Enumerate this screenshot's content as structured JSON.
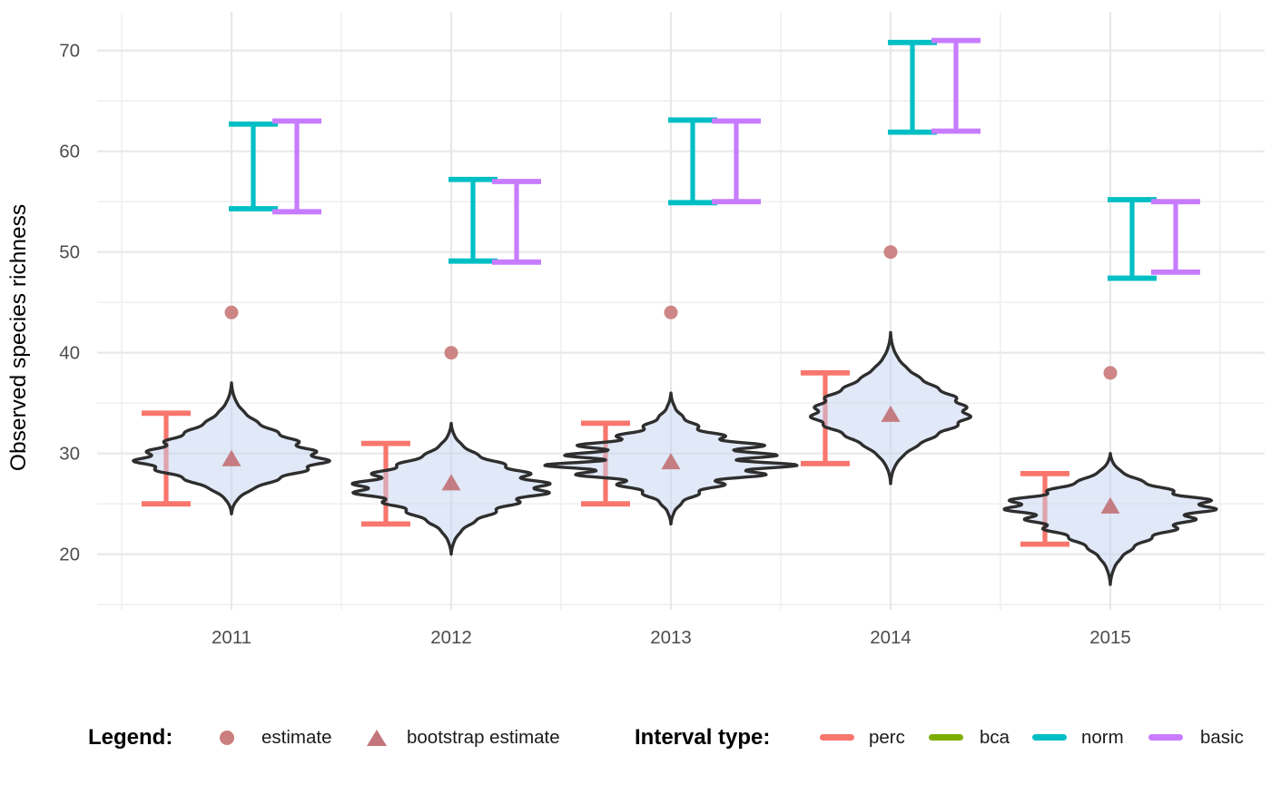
{
  "chart": {
    "y_axis_title": "Observed species richness",
    "legend": {
      "legend_title": "Legend:",
      "estimate_label": "estimate",
      "bootstrap_label": "bootstrap estimate",
      "interval_title": "Interval type:",
      "interval_labels": {
        "perc": "perc",
        "bca": "bca",
        "norm": "norm",
        "basic": "basic"
      }
    }
  },
  "chart_data": {
    "type": "violin",
    "title": "",
    "xlabel": "",
    "ylabel": "Observed species richness",
    "x_categories": [
      "2011",
      "2012",
      "2013",
      "2014",
      "2015"
    ],
    "y_ticks": [
      20,
      30,
      40,
      50,
      60,
      70
    ],
    "ylim": [
      14.5,
      73.9
    ],
    "grid": "major+minor",
    "legend_position": "bottom",
    "estimates": [
      44,
      40,
      44,
      50,
      38
    ],
    "bootstrap_estimates": [
      29.5,
      27.1,
      29.2,
      33.9,
      24.8
    ],
    "intervals": {
      "perc": {
        "label": "perc",
        "color": "#F8766D",
        "lo": [
          25,
          23,
          25,
          29,
          21
        ],
        "hi": [
          34,
          31,
          33,
          38,
          28
        ]
      },
      "bca": {
        "label": "bca",
        "color": "#7CAE00",
        "lo": [
          null,
          null,
          null,
          null,
          null
        ],
        "hi": [
          null,
          null,
          null,
          null,
          null
        ]
      },
      "norm": {
        "label": "norm",
        "color": "#00BFC4",
        "lo": [
          54.3,
          49.1,
          54.9,
          61.9,
          47.4
        ],
        "hi": [
          62.7,
          57.2,
          63.1,
          70.8,
          55.2
        ]
      },
      "basic": {
        "label": "basic",
        "color": "#C77CFF",
        "lo": [
          54,
          49,
          55,
          62,
          48
        ],
        "hi": [
          63,
          57,
          63,
          71,
          55
        ]
      }
    },
    "violins": [
      {
        "category": "2011",
        "min": 24,
        "max": 37,
        "peak": 29.3,
        "hw": 97,
        "wiggle": 0.08
      },
      {
        "category": "2012",
        "min": 20,
        "max": 33,
        "peak": 26.8,
        "hw": 100,
        "wiggle": 0.12
      },
      {
        "category": "2013",
        "min": 23,
        "max": 36,
        "peak": 29.2,
        "hw": 108,
        "wiggle": 0.26
      },
      {
        "category": "2014",
        "min": 27,
        "max": 42,
        "peak": 34.0,
        "hw": 85,
        "wiggle": 0.05
      },
      {
        "category": "2015",
        "min": 17,
        "max": 30,
        "peak": 24.8,
        "hw": 105,
        "wiggle": 0.12
      }
    ],
    "violin_fill": "#C3D2EF",
    "violin_stroke": "#2E2E2E",
    "estimate_point_color": "#CA7E7E",
    "bootstrap_point_color": "#C2767B"
  }
}
